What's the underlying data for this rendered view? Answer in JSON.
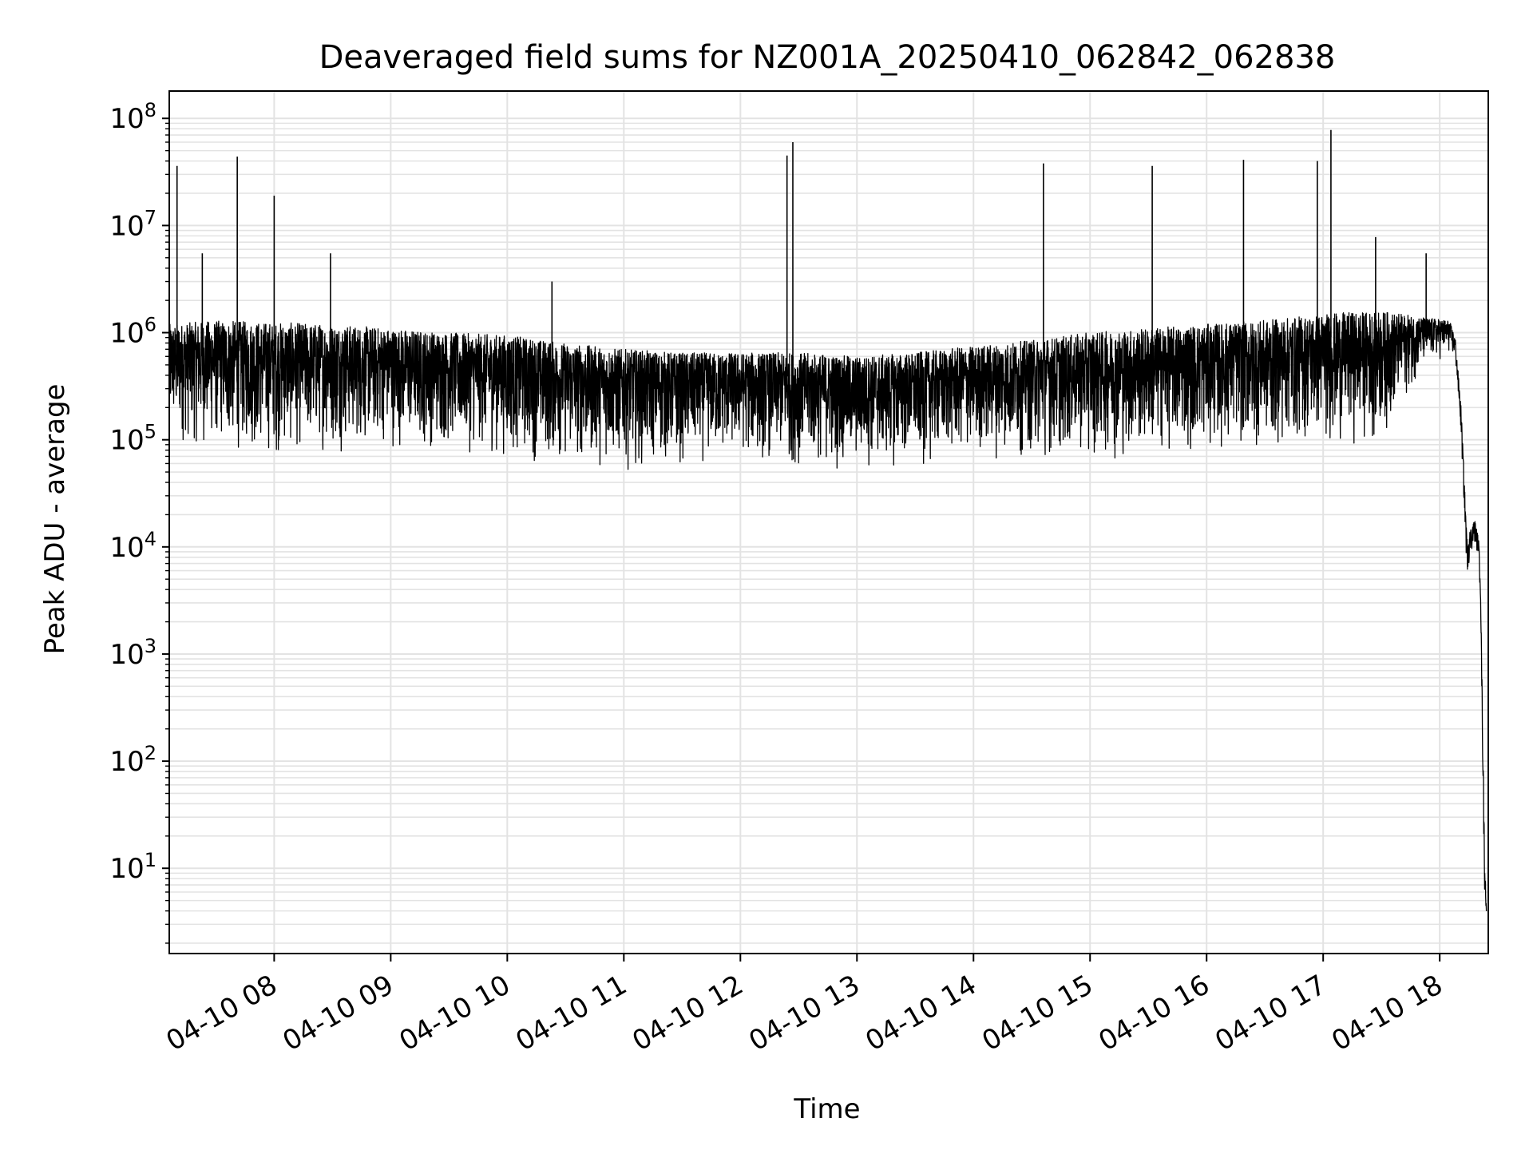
{
  "chart_data": {
    "type": "line",
    "title": "Deaveraged field sums for NZ001A_20250410_062842_062838",
    "xlabel": "Time",
    "ylabel": "Peak ADU - average",
    "xscale": "time",
    "yscale": "log",
    "xlim": [
      "2025-04-10 07:06",
      "2025-04-10 18:25"
    ],
    "ylim": [
      1.6,
      180000000
    ],
    "grid": "on (major and minor, light gray)",
    "line_color": "#000000",
    "x_ticks": [
      "04-10 08",
      "04-10 09",
      "04-10 10",
      "04-10 11",
      "04-10 12",
      "04-10 13",
      "04-10 14",
      "04-10 15",
      "04-10 16",
      "04-10 17",
      "04-10 18"
    ],
    "y_ticks": [
      {
        "base": "10",
        "exp": "1",
        "value": 10
      },
      {
        "base": "10",
        "exp": "2",
        "value": 100
      },
      {
        "base": "10",
        "exp": "3",
        "value": 1000
      },
      {
        "base": "10",
        "exp": "4",
        "value": 10000
      },
      {
        "base": "10",
        "exp": "5",
        "value": 100000
      },
      {
        "base": "10",
        "exp": "6",
        "value": 1000000
      },
      {
        "base": "10",
        "exp": "7",
        "value": 10000000
      },
      {
        "base": "10",
        "exp": "8",
        "value": 100000000
      }
    ],
    "series": [
      {
        "x": [
          "2025-04-10 07:06",
          "2025-04-10 07:30",
          "2025-04-10 08:00",
          "2025-04-10 08:30",
          "2025-04-10 09:00",
          "2025-04-10 09:30",
          "2025-04-10 10:00",
          "2025-04-10 10:30",
          "2025-04-10 11:00",
          "2025-04-10 11:30",
          "2025-04-10 12:00",
          "2025-04-10 12:30",
          "2025-04-10 13:00",
          "2025-04-10 13:30",
          "2025-04-10 14:00",
          "2025-04-10 14:30",
          "2025-04-10 15:00",
          "2025-04-10 15:30",
          "2025-04-10 16:00",
          "2025-04-10 16:30",
          "2025-04-10 17:00",
          "2025-04-10 17:30",
          "2025-04-10 17:50",
          "2025-04-10 18:05",
          "2025-04-10 18:08",
          "2025-04-10 18:11",
          "2025-04-10 18:14",
          "2025-04-10 18:16",
          "2025-04-10 18:18",
          "2025-04-10 18:20",
          "2025-04-10 18:21",
          "2025-04-10 18:22",
          "2025-04-10 18:23",
          "2025-04-10 18:24"
        ],
        "upper": [
          1200000,
          1300000,
          1250000,
          1200000,
          1100000,
          1000000,
          950000,
          800000,
          700000,
          650000,
          650000,
          650000,
          600000,
          650000,
          750000,
          850000,
          1000000,
          1100000,
          1200000,
          1300000,
          1500000,
          1600000,
          1400000,
          1300000,
          900000,
          200000,
          12000,
          15000,
          18000,
          12000,
          5000,
          300,
          20,
          4
        ],
        "lower": [
          80000,
          70000,
          60000,
          70000,
          75000,
          70000,
          60000,
          50000,
          50000,
          50000,
          60000,
          50000,
          45000,
          50000,
          60000,
          60000,
          60000,
          60000,
          70000,
          70000,
          80000,
          85000,
          400000,
          600000,
          500000,
          100000,
          5000,
          8000,
          10000,
          8000,
          3000,
          100,
          5,
          3.5
        ],
        "spikes": [
          {
            "x": "2025-04-10 07:10",
            "y": 36000000
          },
          {
            "x": "2025-04-10 07:23",
            "y": 5500000
          },
          {
            "x": "2025-04-10 07:41",
            "y": 44000000
          },
          {
            "x": "2025-04-10 08:00",
            "y": 19000000
          },
          {
            "x": "2025-04-10 08:29",
            "y": 5500000
          },
          {
            "x": "2025-04-10 10:23",
            "y": 3000000
          },
          {
            "x": "2025-04-10 12:24",
            "y": 45000000
          },
          {
            "x": "2025-04-10 12:27",
            "y": 60000000
          },
          {
            "x": "2025-04-10 14:36",
            "y": 38000000
          },
          {
            "x": "2025-04-10 15:32",
            "y": 36000000
          },
          {
            "x": "2025-04-10 16:19",
            "y": 41000000
          },
          {
            "x": "2025-04-10 16:57",
            "y": 40000000
          },
          {
            "x": "2025-04-10 17:04",
            "y": 78000000
          },
          {
            "x": "2025-04-10 17:27",
            "y": 7800000
          },
          {
            "x": "2025-04-10 17:53",
            "y": 5500000
          }
        ]
      }
    ]
  }
}
